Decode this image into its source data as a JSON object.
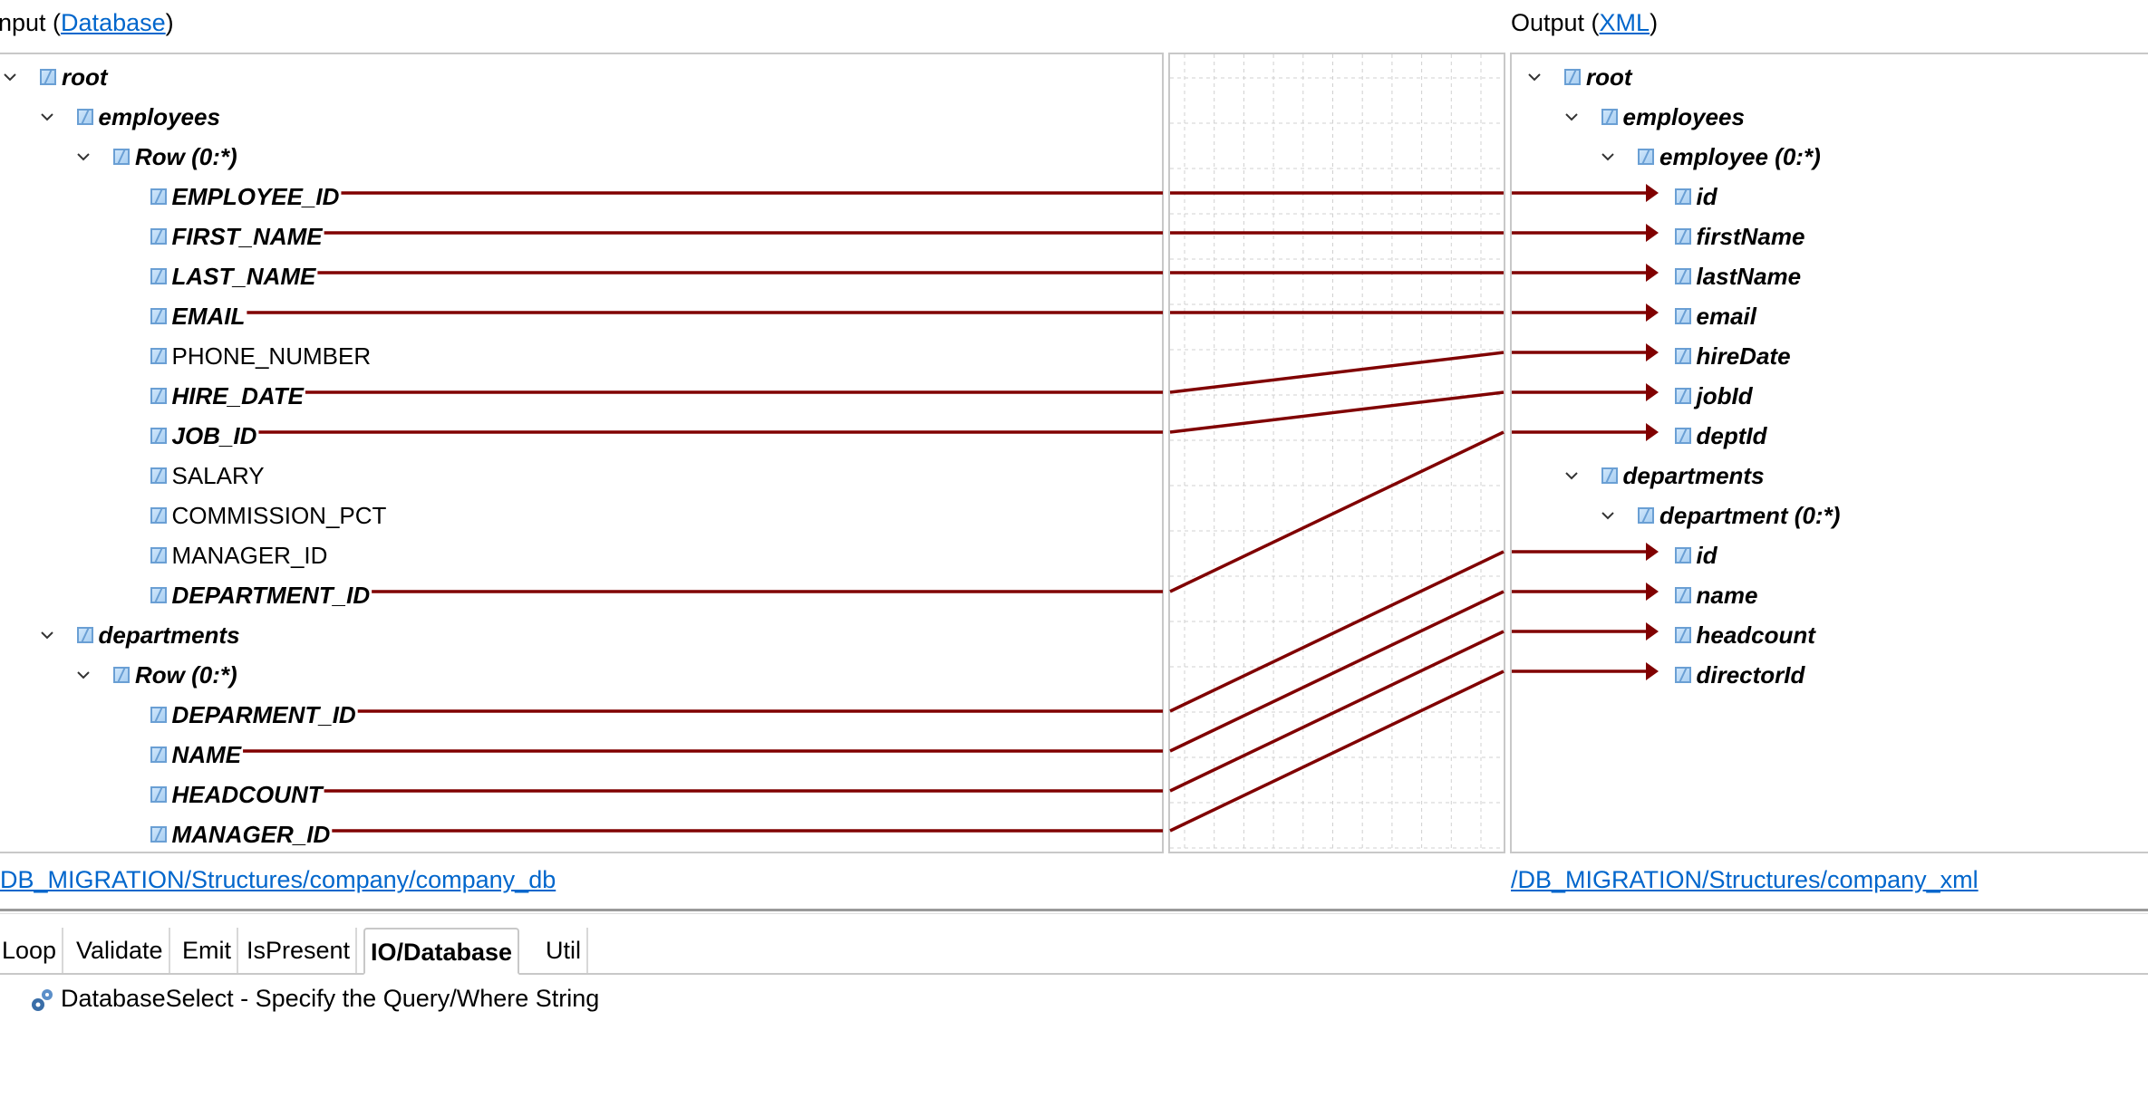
{
  "input": {
    "prefix": "nput (",
    "link": "Database",
    "suffix": ")"
  },
  "output": {
    "prefix": "Output (",
    "link": "XML",
    "suffix": ")"
  },
  "input_tree": [
    {
      "label": "root",
      "depth": 0,
      "bold": true,
      "expanded": true
    },
    {
      "label": "employees",
      "depth": 1,
      "bold": true,
      "expanded": true
    },
    {
      "label": "Row (0:*)",
      "depth": 2,
      "bold": true,
      "expanded": true,
      "selected": true
    },
    {
      "label": "EMPLOYEE_ID",
      "depth": 3,
      "bold": true
    },
    {
      "label": "FIRST_NAME",
      "depth": 3,
      "bold": true
    },
    {
      "label": "LAST_NAME",
      "depth": 3,
      "bold": true
    },
    {
      "label": "EMAIL",
      "depth": 3,
      "bold": true
    },
    {
      "label": "PHONE_NUMBER",
      "depth": 3,
      "bold": false
    },
    {
      "label": "HIRE_DATE",
      "depth": 3,
      "bold": true
    },
    {
      "label": "JOB_ID",
      "depth": 3,
      "bold": true
    },
    {
      "label": "SALARY",
      "depth": 3,
      "bold": false
    },
    {
      "label": "COMMISSION_PCT",
      "depth": 3,
      "bold": false
    },
    {
      "label": "MANAGER_ID",
      "depth": 3,
      "bold": false
    },
    {
      "label": "DEPARTMENT_ID",
      "depth": 3,
      "bold": true
    },
    {
      "label": "departments",
      "depth": 1,
      "bold": true,
      "expanded": true
    },
    {
      "label": "Row (0:*)",
      "depth": 2,
      "bold": true,
      "expanded": true
    },
    {
      "label": "DEPARMENT_ID",
      "depth": 3,
      "bold": true
    },
    {
      "label": "NAME",
      "depth": 3,
      "bold": true
    },
    {
      "label": "HEADCOUNT",
      "depth": 3,
      "bold": true
    },
    {
      "label": "MANAGER_ID",
      "depth": 3,
      "bold": true
    }
  ],
  "output_tree": [
    {
      "label": "root",
      "depth": 0,
      "bold": true,
      "expanded": true
    },
    {
      "label": "employees",
      "depth": 1,
      "bold": true,
      "expanded": true
    },
    {
      "label": "employee (0:*)",
      "depth": 2,
      "bold": true,
      "expanded": true
    },
    {
      "label": "id",
      "depth": 3,
      "bold": true
    },
    {
      "label": "firstName",
      "depth": 3,
      "bold": true
    },
    {
      "label": "lastName",
      "depth": 3,
      "bold": true
    },
    {
      "label": "email",
      "depth": 3,
      "bold": true
    },
    {
      "label": "hireDate",
      "depth": 3,
      "bold": true
    },
    {
      "label": "jobId",
      "depth": 3,
      "bold": true
    },
    {
      "label": "deptId",
      "depth": 3,
      "bold": true
    },
    {
      "label": "departments",
      "depth": 1,
      "bold": true,
      "expanded": true
    },
    {
      "label": "department (0:*)",
      "depth": 2,
      "bold": true,
      "expanded": true
    },
    {
      "label": "id",
      "depth": 3,
      "bold": true
    },
    {
      "label": "name",
      "depth": 3,
      "bold": true
    },
    {
      "label": "headcount",
      "depth": 3,
      "bold": true
    },
    {
      "label": "directorId",
      "depth": 3,
      "bold": true
    }
  ],
  "mappings": [
    {
      "from": 3,
      "to": 3
    },
    {
      "from": 4,
      "to": 4
    },
    {
      "from": 5,
      "to": 5
    },
    {
      "from": 6,
      "to": 6
    },
    {
      "from": 8,
      "to": 7
    },
    {
      "from": 9,
      "to": 8
    },
    {
      "from": 13,
      "to": 9
    },
    {
      "from": 16,
      "to": 12
    },
    {
      "from": 17,
      "to": 13
    },
    {
      "from": 18,
      "to": 14
    },
    {
      "from": 19,
      "to": 15
    }
  ],
  "mapping_color": "#800000",
  "selection_color": "#cce8ff",
  "link_color": "#0066cc",
  "input_path": "DB_MIGRATION/Structures/company/company_db",
  "output_path": "/DB_MIGRATION/Structures/company_xml",
  "tabs": [
    {
      "label": "Loop",
      "active": false
    },
    {
      "label": "Validate",
      "active": false
    },
    {
      "label": "Emit",
      "active": false
    },
    {
      "label": "IsPresent",
      "active": false
    },
    {
      "label": "IO/Database",
      "active": true
    },
    {
      "label": "Util",
      "active": false
    }
  ],
  "palette_item": {
    "icon": "gears-icon",
    "label": "DatabaseSelect - Specify the Query/Where String"
  }
}
